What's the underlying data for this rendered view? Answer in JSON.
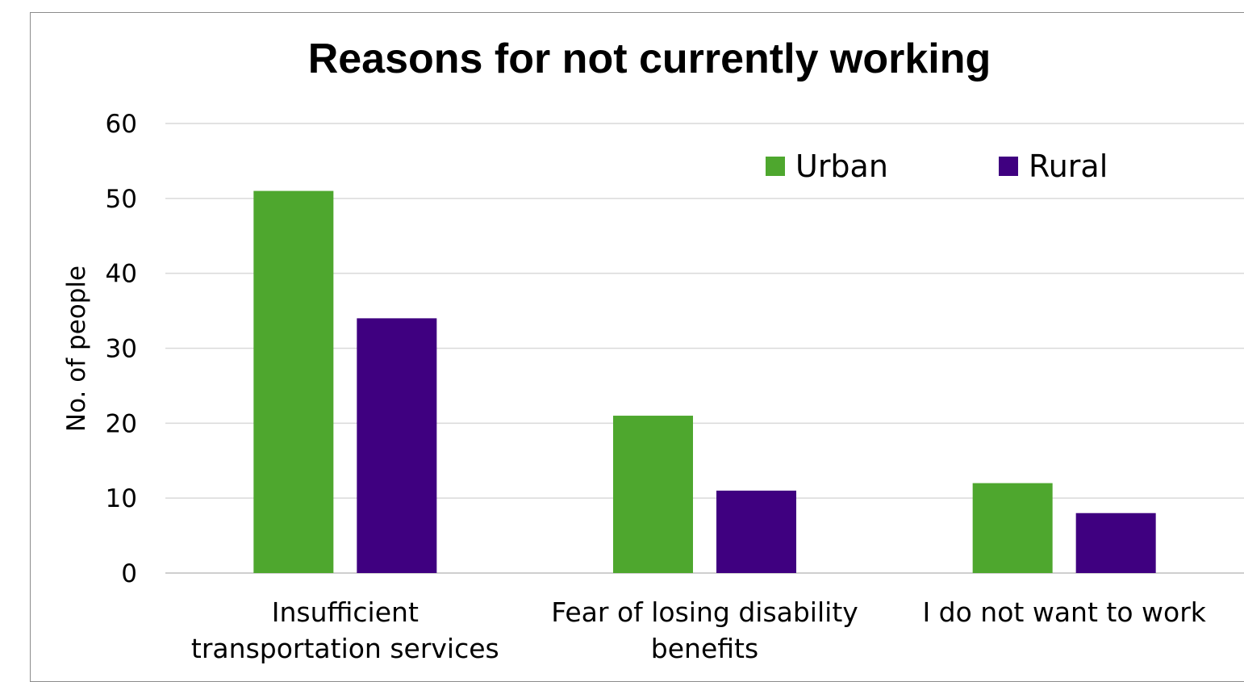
{
  "chart_data": {
    "type": "bar",
    "title": "Reasons for not currently working",
    "ylabel": "No. of people",
    "xlabel": "",
    "ylim": [
      0,
      60
    ],
    "yticks": [
      0,
      10,
      20,
      30,
      40,
      50,
      60
    ],
    "grid": true,
    "legend_position": "top-right",
    "categories": [
      [
        "Insufficient",
        "transportation services"
      ],
      [
        "Fear of losing disability",
        "benefits"
      ],
      [
        "I do not want to work"
      ]
    ],
    "series": [
      {
        "name": "Urban",
        "color": "#4ea72e",
        "values": [
          51,
          21,
          12
        ]
      },
      {
        "name": "Rural",
        "color": "#3f0080",
        "values": [
          34,
          11,
          8
        ]
      }
    ]
  }
}
